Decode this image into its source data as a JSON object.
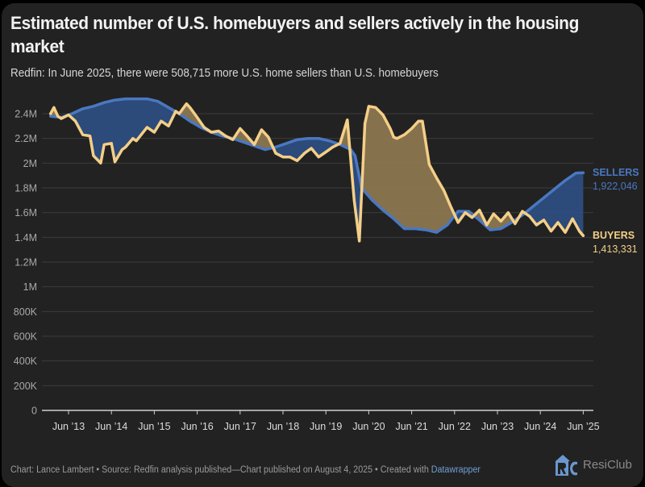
{
  "title": "Estimated number of U.S. homebuyers and sellers actively in the housing market",
  "subtitle": "Redfin: In June 2025, there were 508,715 more U.S. home sellers than U.S. homebuyers",
  "footer": {
    "credit": "Chart: Lance Lambert • Source: Redfin analysis published—Chart published on August 4, 2025 • Created with ",
    "tool": "Datawrapper",
    "brand": "ResiClub"
  },
  "colors": {
    "sellers": "#4a78c0",
    "buyers": "#f4cf87",
    "sellers_fill": "#2d4d80",
    "buyers_fill": "#8c7650",
    "background": "#222222",
    "grid": "#3c3c3c"
  },
  "chart_data": {
    "type": "area",
    "title": "Estimated number of U.S. homebuyers and sellers actively in the housing market",
    "xlabel": "",
    "ylabel": "",
    "ylim": [
      0,
      2400000
    ],
    "xlim": [
      2013.0,
      2025.45
    ],
    "grid": true,
    "yticks": [
      {
        "value": 0,
        "label": "0"
      },
      {
        "value": 200000,
        "label": "200K"
      },
      {
        "value": 400000,
        "label": "400K"
      },
      {
        "value": 600000,
        "label": "600K"
      },
      {
        "value": 800000,
        "label": "800K"
      },
      {
        "value": 1000000,
        "label": "1M"
      },
      {
        "value": 1200000,
        "label": "1.2M"
      },
      {
        "value": 1400000,
        "label": "1.4M"
      },
      {
        "value": 1600000,
        "label": "1.6M"
      },
      {
        "value": 1800000,
        "label": "1.8M"
      },
      {
        "value": 2000000,
        "label": "2M"
      },
      {
        "value": 2200000,
        "label": "2.2M"
      },
      {
        "value": 2400000,
        "label": "2.4M"
      }
    ],
    "xticks": [
      {
        "value": 2013.42,
        "label": "Jun ’13"
      },
      {
        "value": 2014.42,
        "label": "Jun ’14"
      },
      {
        "value": 2015.42,
        "label": "Jun ’15"
      },
      {
        "value": 2016.42,
        "label": "Jun ’16"
      },
      {
        "value": 2017.42,
        "label": "Jun ’17"
      },
      {
        "value": 2018.42,
        "label": "Jun ’18"
      },
      {
        "value": 2019.42,
        "label": "Jun ’19"
      },
      {
        "value": 2020.42,
        "label": "Jun ’20"
      },
      {
        "value": 2021.42,
        "label": "Jun ’21"
      },
      {
        "value": 2022.42,
        "label": "Jun ’22"
      },
      {
        "value": 2023.42,
        "label": "Jun ’23"
      },
      {
        "value": 2024.42,
        "label": "Jun ’24"
      },
      {
        "value": 2025.42,
        "label": "Jun ’25"
      }
    ],
    "legend_placement": "right (direct labels)",
    "series": [
      {
        "name": "SELLERS",
        "end_label": "1,922,046",
        "x": [
          2013.0,
          2013.25,
          2013.5,
          2013.75,
          2014.0,
          2014.25,
          2014.5,
          2014.75,
          2015.0,
          2015.25,
          2015.5,
          2015.75,
          2016.0,
          2016.25,
          2016.5,
          2016.75,
          2017.0,
          2017.25,
          2017.5,
          2017.75,
          2018.0,
          2018.25,
          2018.5,
          2018.75,
          2019.0,
          2019.25,
          2019.5,
          2019.75,
          2020.0,
          2020.1,
          2020.25,
          2020.5,
          2020.75,
          2021.0,
          2021.25,
          2021.5,
          2021.75,
          2022.0,
          2022.25,
          2022.5,
          2022.75,
          2023.0,
          2023.25,
          2023.5,
          2023.75,
          2024.0,
          2024.25,
          2024.5,
          2024.75,
          2025.0,
          2025.25,
          2025.42
        ],
        "values": [
          2380000,
          2370000,
          2400000,
          2440000,
          2460000,
          2490000,
          2510000,
          2520000,
          2520000,
          2520000,
          2500000,
          2450000,
          2400000,
          2340000,
          2290000,
          2250000,
          2220000,
          2200000,
          2170000,
          2140000,
          2110000,
          2130000,
          2160000,
          2190000,
          2200000,
          2200000,
          2180000,
          2150000,
          2110000,
          2060000,
          1800000,
          1700000,
          1620000,
          1550000,
          1470000,
          1470000,
          1460000,
          1440000,
          1500000,
          1610000,
          1610000,
          1540000,
          1460000,
          1470000,
          1520000,
          1580000,
          1650000,
          1720000,
          1790000,
          1860000,
          1920000,
          1922046
        ]
      },
      {
        "name": "BUYERS",
        "end_label": "1,413,331",
        "x": [
          2013.0,
          2013.08,
          2013.17,
          2013.25,
          2013.42,
          2013.58,
          2013.75,
          2013.92,
          2014.0,
          2014.17,
          2014.25,
          2014.42,
          2014.5,
          2014.67,
          2014.75,
          2014.92,
          2015.0,
          2015.25,
          2015.42,
          2015.58,
          2015.75,
          2015.92,
          2016.0,
          2016.17,
          2016.25,
          2016.42,
          2016.58,
          2016.75,
          2016.92,
          2017.08,
          2017.25,
          2017.42,
          2017.58,
          2017.75,
          2017.92,
          2018.08,
          2018.25,
          2018.42,
          2018.58,
          2018.75,
          2018.92,
          2019.08,
          2019.25,
          2019.42,
          2019.58,
          2019.75,
          2019.92,
          2020.08,
          2020.2,
          2020.33,
          2020.42,
          2020.58,
          2020.75,
          2020.92,
          2021.0,
          2021.08,
          2021.25,
          2021.42,
          2021.58,
          2021.67,
          2021.83,
          2022.0,
          2022.17,
          2022.33,
          2022.5,
          2022.67,
          2022.83,
          2023.0,
          2023.17,
          2023.33,
          2023.5,
          2023.67,
          2023.83,
          2024.0,
          2024.17,
          2024.33,
          2024.5,
          2024.67,
          2024.83,
          2025.0,
          2025.17,
          2025.33,
          2025.42
        ],
        "values": [
          2400000,
          2450000,
          2380000,
          2360000,
          2390000,
          2340000,
          2230000,
          2220000,
          2060000,
          2000000,
          2150000,
          2160000,
          2010000,
          2110000,
          2130000,
          2200000,
          2180000,
          2290000,
          2250000,
          2340000,
          2300000,
          2420000,
          2400000,
          2480000,
          2450000,
          2370000,
          2290000,
          2250000,
          2260000,
          2220000,
          2190000,
          2280000,
          2220000,
          2150000,
          2270000,
          2210000,
          2080000,
          2050000,
          2050000,
          2020000,
          2080000,
          2120000,
          2050000,
          2090000,
          2130000,
          2160000,
          2350000,
          1700000,
          1370000,
          2320000,
          2460000,
          2450000,
          2390000,
          2280000,
          2210000,
          2200000,
          2230000,
          2280000,
          2340000,
          2340000,
          1990000,
          1880000,
          1780000,
          1650000,
          1520000,
          1600000,
          1560000,
          1620000,
          1500000,
          1590000,
          1530000,
          1600000,
          1510000,
          1610000,
          1570000,
          1500000,
          1540000,
          1450000,
          1520000,
          1440000,
          1550000,
          1450000,
          1413331
        ]
      }
    ]
  }
}
